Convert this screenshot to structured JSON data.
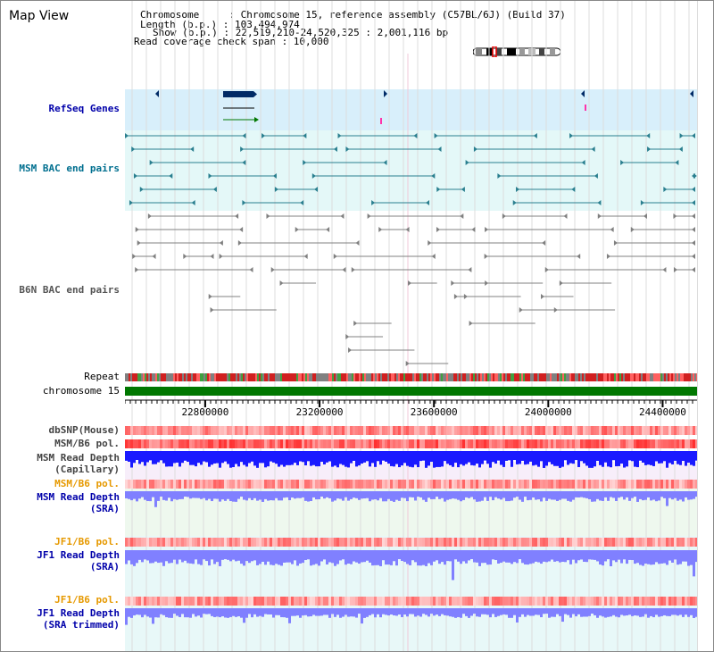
{
  "header": {
    "view_title": "Map View",
    "chromosome_line": "Chromosome     : Chromosome 15, reference assembly (C57BL/6J) (Build 37)",
    "length_line": "Length (b.p.) : 103,494,974",
    "show_line": "Show (b.p.) : 22,519,210-24,520,325 : 2,001,116 bp",
    "coverage_line": "Read coverage check span : 10,000"
  },
  "tracks": {
    "refseq": "RefSeq Genes",
    "msm_bac": "MSM BAC end pairs",
    "b6n_bac": "B6N BAC end pairs",
    "repeat": "Repeat",
    "chromosome": "chromosome 15",
    "dbsnp": "dbSNP(Mouse)",
    "msm_b6_pol_1": "MSM/B6 pol.",
    "msm_depth_cap_1": "MSM Read Depth",
    "msm_depth_cap_2": "(Capillary)",
    "msm_b6_pol_2": "MSM/B6 pol.",
    "msm_depth_sra_1": "MSM Read Depth",
    "msm_depth_sra_2": "(SRA)",
    "jf1_b6_pol_1": "JF1/B6 pol.",
    "jf1_depth_sra_1": "JF1 Read Depth",
    "jf1_depth_sra_2": "(SRA)",
    "jf1_b6_pol_2": "JF1/B6 pol.",
    "jf1_depth_trim_1": "JF1 Read Depth",
    "jf1_depth_trim_2": "(SRA trimmed)"
  },
  "axis": {
    "start": 22519210,
    "end": 24520325,
    "ticks": [
      "22800000",
      "23200000",
      "23600000",
      "24000000",
      "24400000"
    ],
    "tick_values": [
      22800000,
      23200000,
      23600000,
      24000000,
      24400000
    ]
  },
  "colors": {
    "refseq_bg": "#d8effb",
    "msm_bg": "#e4f8f8",
    "msm_feature": "#2a7f8f",
    "b6n_feature": "#808080",
    "gene_dark": "#002a66",
    "chromosome_bar": "#007700",
    "snp_light": "#ffb0b0",
    "snp_dark": "#ff3030",
    "depth_dark": "#1a1aff",
    "depth_light": "#8080ff",
    "label_blue": "#0000aa",
    "label_teal": "#006f8f",
    "label_orange": "#e69900"
  }
}
